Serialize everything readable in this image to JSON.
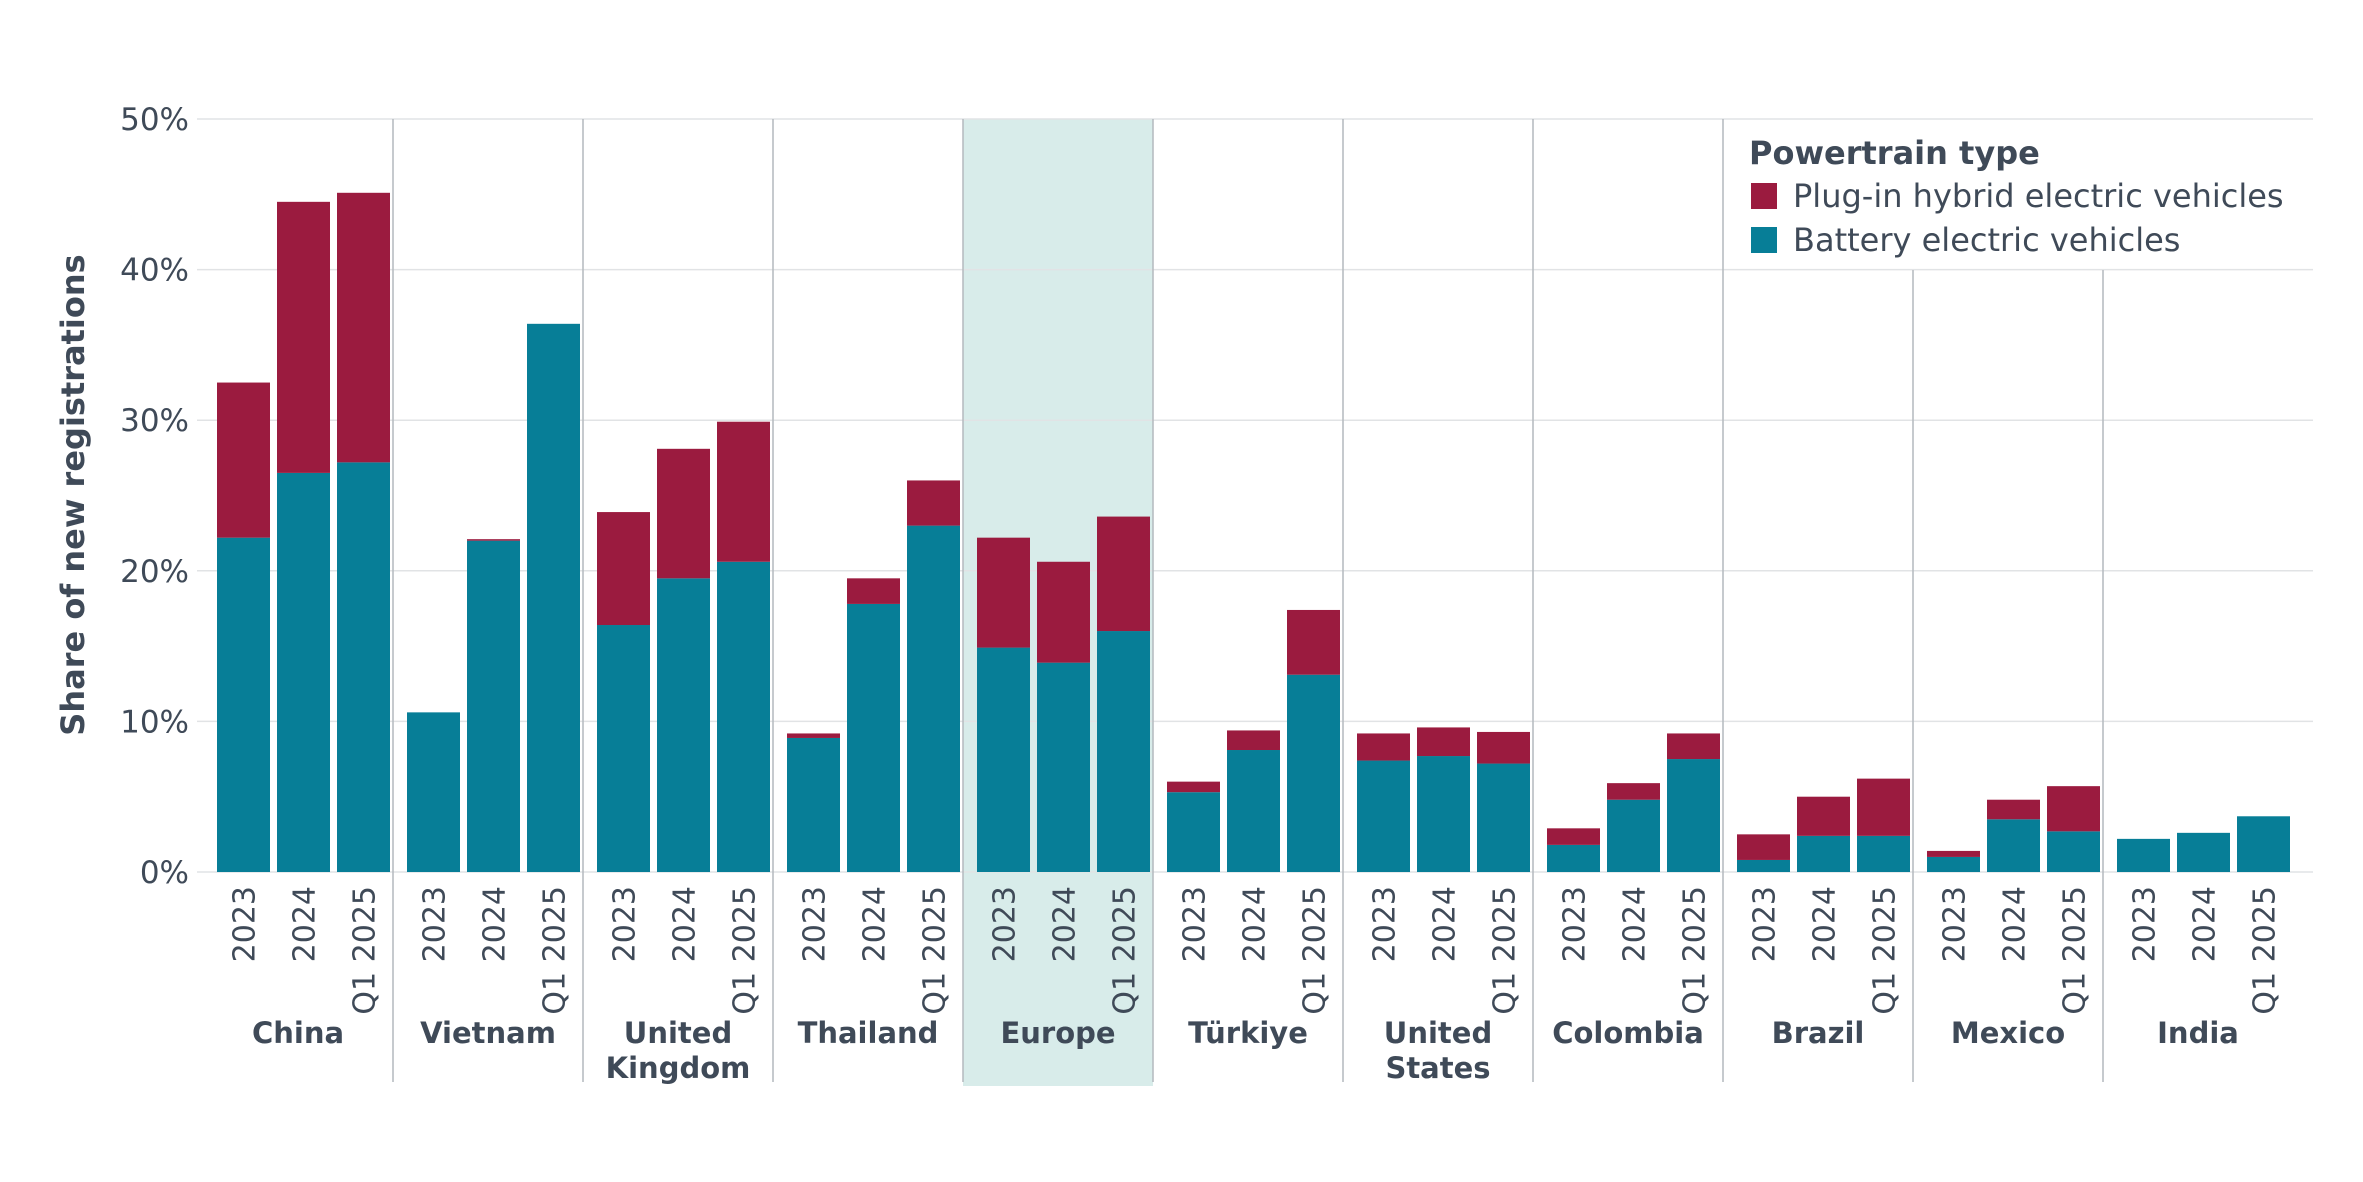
{
  "chart_data": {
    "type": "bar",
    "stacked": true,
    "ylabel": "Share of new registrations",
    "ylim": [
      0,
      50
    ],
    "yticks": [
      0,
      10,
      20,
      30,
      40,
      50
    ],
    "ytick_labels": [
      "0%",
      "10%",
      "20%",
      "30%",
      "40%",
      "50%"
    ],
    "grid": true,
    "legend": {
      "title": "Powertrain type",
      "placement": "top-right",
      "entries": [
        {
          "name": "Plug-in hybrid electric vehicles",
          "color": "#9b1b3f"
        },
        {
          "name": "Battery electric vehicles",
          "color": "#077e97"
        }
      ]
    },
    "highlight_group": "Europe",
    "highlight_color": "#d8ecea",
    "groups": [
      {
        "name": "China",
        "label_lines": [
          "China"
        ],
        "periods": [
          "2023",
          "2024",
          "Q1 2025"
        ],
        "bev": [
          22.2,
          26.5,
          27.2
        ],
        "phev": [
          10.3,
          18.0,
          17.9
        ]
      },
      {
        "name": "Vietnam",
        "label_lines": [
          "Vietnam"
        ],
        "periods": [
          "2023",
          "2024",
          "Q1 2025"
        ],
        "bev": [
          10.6,
          22.0,
          36.4
        ],
        "phev": [
          0.0,
          0.1,
          0.0
        ]
      },
      {
        "name": "United Kingdom",
        "label_lines": [
          "United",
          "Kingdom"
        ],
        "periods": [
          "2023",
          "2024",
          "Q1 2025"
        ],
        "bev": [
          16.4,
          19.5,
          20.6
        ],
        "phev": [
          7.5,
          8.6,
          9.3
        ]
      },
      {
        "name": "Thailand",
        "label_lines": [
          "Thailand"
        ],
        "periods": [
          "2023",
          "2024",
          "Q1 2025"
        ],
        "bev": [
          8.9,
          17.8,
          23.0
        ],
        "phev": [
          0.3,
          1.7,
          3.0
        ]
      },
      {
        "name": "Europe",
        "label_lines": [
          "Europe"
        ],
        "periods": [
          "2023",
          "2024",
          "Q1 2025"
        ],
        "bev": [
          14.9,
          13.9,
          16.0
        ],
        "phev": [
          7.3,
          6.7,
          7.6
        ]
      },
      {
        "name": "Türkiye",
        "label_lines": [
          "Türkiye"
        ],
        "periods": [
          "2023",
          "2024",
          "Q1 2025"
        ],
        "bev": [
          5.3,
          8.1,
          13.1
        ],
        "phev": [
          0.7,
          1.3,
          4.3
        ]
      },
      {
        "name": "United States",
        "label_lines": [
          "United",
          "States"
        ],
        "periods": [
          "2023",
          "2024",
          "Q1 2025"
        ],
        "bev": [
          7.4,
          7.7,
          7.2
        ],
        "phev": [
          1.8,
          1.9,
          2.1
        ]
      },
      {
        "name": "Colombia",
        "label_lines": [
          "Colombia"
        ],
        "periods": [
          "2023",
          "2024",
          "Q1 2025"
        ],
        "bev": [
          1.8,
          4.8,
          7.5
        ],
        "phev": [
          1.1,
          1.1,
          1.7
        ]
      },
      {
        "name": "Brazil",
        "label_lines": [
          "Brazil"
        ],
        "periods": [
          "2023",
          "2024",
          "Q1 2025"
        ],
        "bev": [
          0.8,
          2.4,
          2.4
        ],
        "phev": [
          1.7,
          2.6,
          3.8
        ]
      },
      {
        "name": "Mexico",
        "label_lines": [
          "Mexico"
        ],
        "periods": [
          "2023",
          "2024",
          "Q1 2025"
        ],
        "bev": [
          1.0,
          3.5,
          2.7
        ],
        "phev": [
          0.4,
          1.3,
          3.0
        ]
      },
      {
        "name": "India",
        "label_lines": [
          "India"
        ],
        "periods": [
          "2023",
          "2024",
          "Q1 2025"
        ],
        "bev": [
          2.2,
          2.6,
          3.7
        ],
        "phev": [
          0.0,
          0.0,
          0.0
        ]
      }
    ]
  }
}
